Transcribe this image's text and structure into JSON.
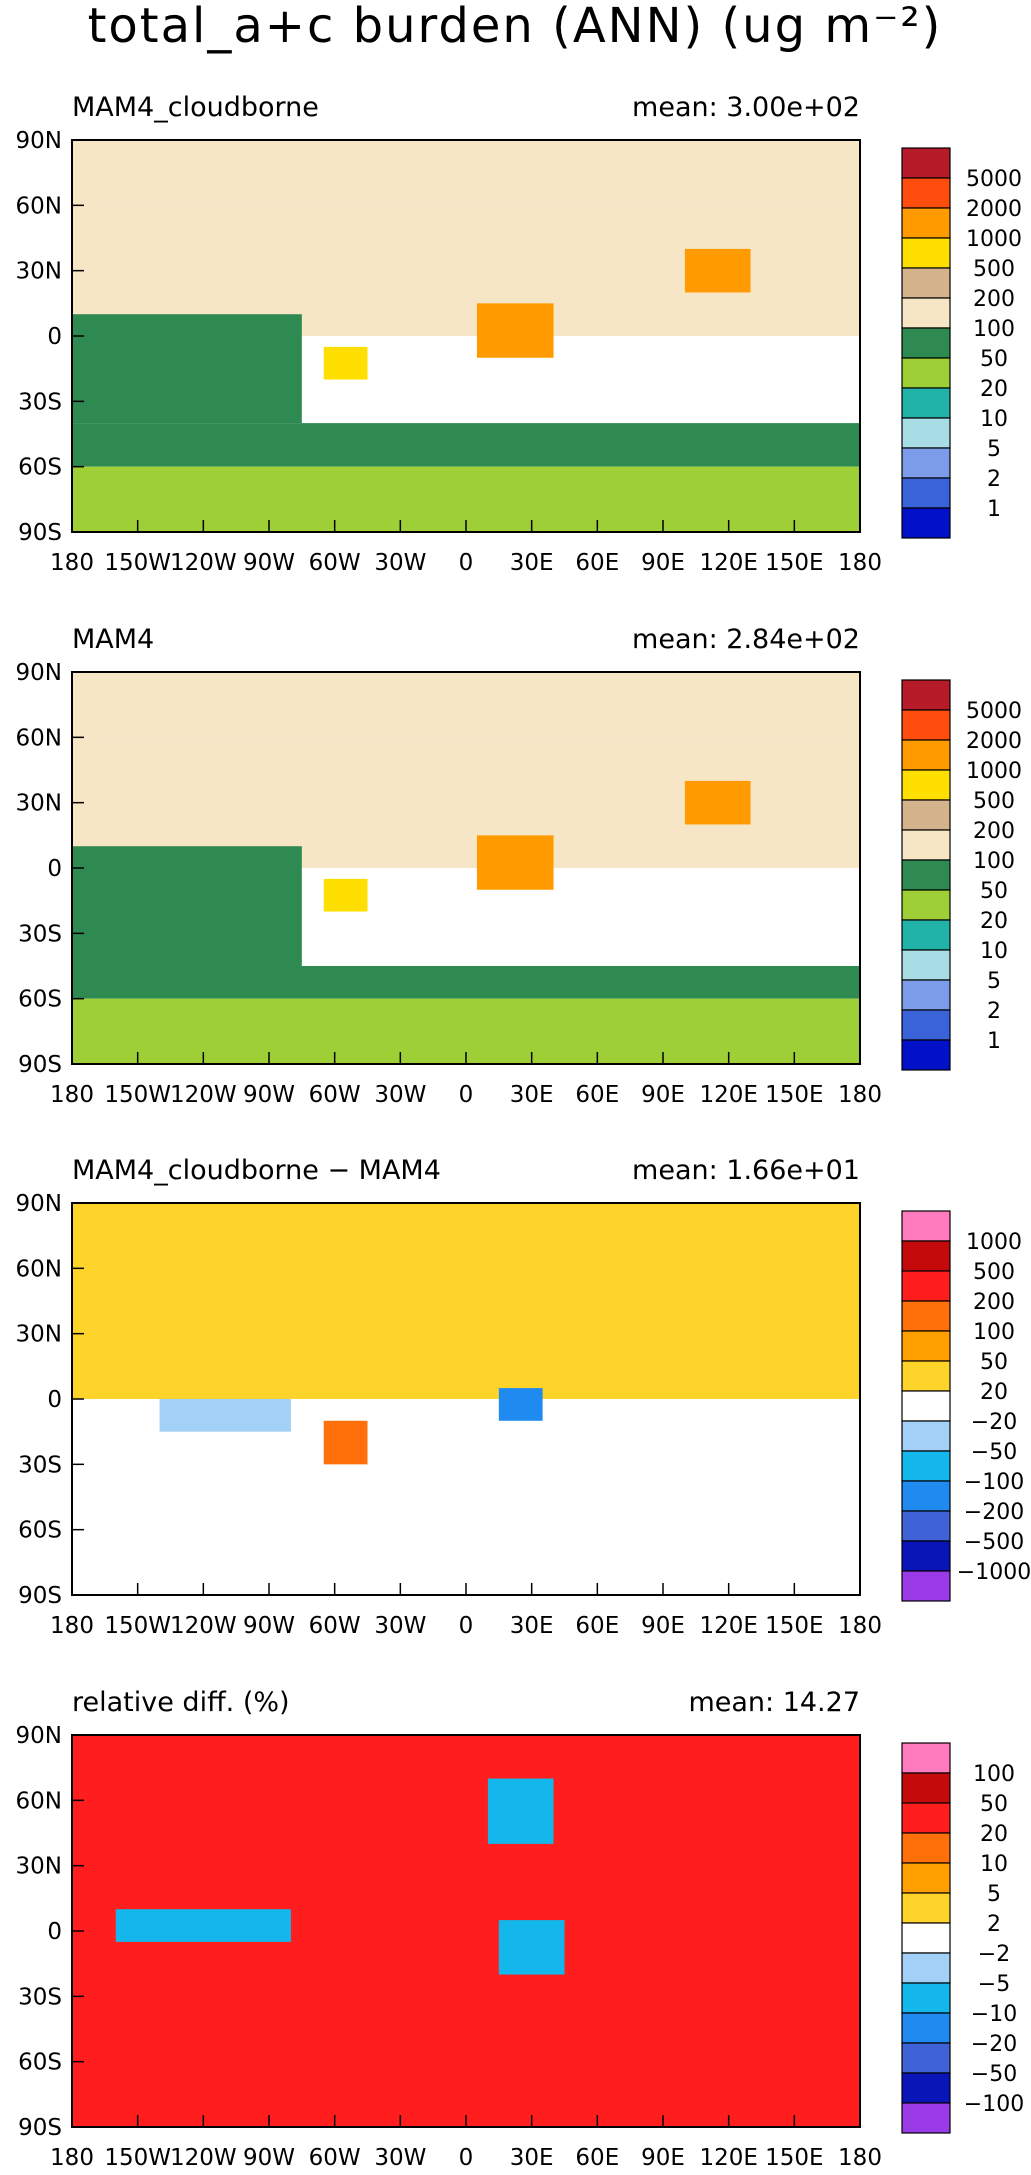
{
  "figure": {
    "title": "total_a+c burden (ANN) (ug m⁻²)"
  },
  "palettes": {
    "burden": [
      "#b51b28",
      "#ff4d0d",
      "#ff9b00",
      "#ffdf00",
      "#d4b28c",
      "#f6e6c6",
      "#2f8a52",
      "#9ecf36",
      "#21b3a7",
      "#a8dde6",
      "#7c9ce9",
      "#3a63da",
      "#0011c8"
    ],
    "diff": [
      "#ff7bbd",
      "#c40a0a",
      "#ff1d1d",
      "#ff6f0a",
      "#ff9f00",
      "#ffd42a",
      "#ffffff",
      "#a3d0f7",
      "#13b7ec",
      "#1f8af0",
      "#3f63d6",
      "#0a15b8",
      "#9b3be8"
    ]
  },
  "lon_ticks": [
    "180",
    "150W",
    "120W",
    "90W",
    "60W",
    "30W",
    "0",
    "30E",
    "60E",
    "90E",
    "120E",
    "150E",
    "180"
  ],
  "lat_ticks": [
    "90N",
    "60N",
    "30N",
    "0",
    "30S",
    "60S",
    "90S"
  ],
  "chart_data": [
    {
      "type": "heatmap",
      "title": "MAM4_cloudborne",
      "mean_label": "mean: 3.00e+02",
      "colorbar_levels": [
        "5000",
        "2000",
        "1000",
        "500",
        "200",
        "100",
        "50",
        "20",
        "10",
        "5",
        "2",
        "1"
      ],
      "xlim": [
        -180,
        180
      ],
      "ylim": [
        -90,
        90
      ],
      "zones": [
        {
          "lat": [
            60,
            90
          ],
          "lon": [
            -180,
            180
          ],
          "bin": 5
        },
        {
          "lat": [
            0,
            60
          ],
          "lon": [
            -180,
            180
          ],
          "bin": 5
        },
        {
          "lat": [
            -40,
            10
          ],
          "lon": [
            -180,
            -75
          ],
          "bin": 6
        },
        {
          "lat": [
            -60,
            -40
          ],
          "lon": [
            -180,
            180
          ],
          "bin": 6
        },
        {
          "lat": [
            -90,
            -60
          ],
          "lon": [
            -180,
            180
          ],
          "bin": 7
        },
        {
          "lat": [
            -10,
            15
          ],
          "lon": [
            5,
            40
          ],
          "bin": 2
        },
        {
          "lat": [
            20,
            40
          ],
          "lon": [
            100,
            130
          ],
          "bin": 2
        },
        {
          "lat": [
            -20,
            -5
          ],
          "lon": [
            -65,
            -45
          ],
          "bin": 3
        }
      ]
    },
    {
      "type": "heatmap",
      "title": "MAM4",
      "mean_label": "mean: 2.84e+02",
      "colorbar_levels": [
        "5000",
        "2000",
        "1000",
        "500",
        "200",
        "100",
        "50",
        "20",
        "10",
        "5",
        "2",
        "1"
      ],
      "xlim": [
        -180,
        180
      ],
      "ylim": [
        -90,
        90
      ],
      "zones": [
        {
          "lat": [
            60,
            90
          ],
          "lon": [
            -180,
            180
          ],
          "bin": 5
        },
        {
          "lat": [
            0,
            60
          ],
          "lon": [
            -180,
            180
          ],
          "bin": 5
        },
        {
          "lat": [
            -45,
            10
          ],
          "lon": [
            -180,
            -75
          ],
          "bin": 6
        },
        {
          "lat": [
            -60,
            -45
          ],
          "lon": [
            -180,
            180
          ],
          "bin": 6
        },
        {
          "lat": [
            -90,
            -60
          ],
          "lon": [
            -180,
            180
          ],
          "bin": 7
        },
        {
          "lat": [
            -10,
            15
          ],
          "lon": [
            5,
            40
          ],
          "bin": 2
        },
        {
          "lat": [
            20,
            40
          ],
          "lon": [
            100,
            130
          ],
          "bin": 2
        },
        {
          "lat": [
            -20,
            -5
          ],
          "lon": [
            -65,
            -45
          ],
          "bin": 3
        }
      ]
    },
    {
      "type": "heatmap",
      "title": "MAM4_cloudborne − MAM4",
      "mean_label": "mean: 1.66e+01",
      "colorbar_levels": [
        "1000",
        "500",
        "200",
        "100",
        "50",
        "20",
        "−20",
        "−50",
        "−100",
        "−200",
        "−500",
        "−1000"
      ],
      "xlim": [
        -180,
        180
      ],
      "ylim": [
        -90,
        90
      ],
      "zones": [
        {
          "lat": [
            0,
            90
          ],
          "lon": [
            -180,
            180
          ],
          "bin": 5
        },
        {
          "lat": [
            -90,
            -35
          ],
          "lon": [
            -180,
            180
          ],
          "bin": 6
        },
        {
          "lat": [
            -15,
            0
          ],
          "lon": [
            -140,
            -80
          ],
          "bin": 7
        },
        {
          "lat": [
            -10,
            5
          ],
          "lon": [
            15,
            35
          ],
          "bin": 9
        },
        {
          "lat": [
            -30,
            -10
          ],
          "lon": [
            -65,
            -45
          ],
          "bin": 3
        }
      ]
    },
    {
      "type": "heatmap",
      "title": "relative diff. (%)",
      "mean_label": "mean: 14.27",
      "colorbar_levels": [
        "100",
        "50",
        "20",
        "10",
        "5",
        "2",
        "−2",
        "−5",
        "−10",
        "−20",
        "−50",
        "−100"
      ],
      "xlim": [
        -180,
        180
      ],
      "ylim": [
        -90,
        90
      ],
      "zones": [
        {
          "lat": [
            -90,
            90
          ],
          "lon": [
            -180,
            180
          ],
          "bin": 2
        },
        {
          "lat": [
            -5,
            10
          ],
          "lon": [
            -160,
            -80
          ],
          "bin": 8
        },
        {
          "lat": [
            -20,
            5
          ],
          "lon": [
            15,
            45
          ],
          "bin": 8
        },
        {
          "lat": [
            40,
            70
          ],
          "lon": [
            10,
            40
          ],
          "bin": 8
        }
      ]
    }
  ]
}
